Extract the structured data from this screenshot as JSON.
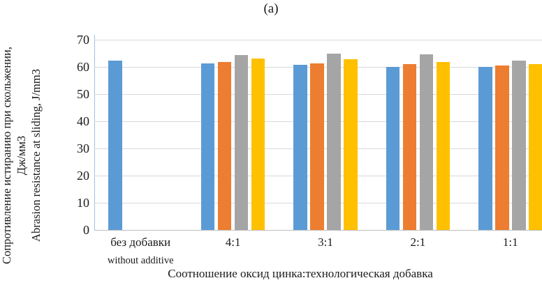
{
  "figure": {
    "panel_label": "(a)"
  },
  "chart_data": {
    "type": "bar",
    "title": "(a)",
    "xlabel": "Соотношение оксид цинка:технологическая добавка",
    "ylabel_lines": [
      "Сопротивление истиранию при скольжении,",
      "Дж/мм3",
      "Abrasion resistance at sliding, J/mm3"
    ],
    "categories": [
      {
        "label": "без добавки",
        "sublabel": "without additive"
      },
      {
        "label": "4:1",
        "sublabel": ""
      },
      {
        "label": "3:1",
        "sublabel": ""
      },
      {
        "label": "2:1",
        "sublabel": ""
      },
      {
        "label": "1:1",
        "sublabel": ""
      }
    ],
    "series": [
      {
        "name": "series-1-blue",
        "color": "#5B9BD5",
        "values": [
          62.3,
          61.3,
          60.7,
          60.1,
          59.9
        ]
      },
      {
        "name": "series-2-orange",
        "color": "#ED7D31",
        "values": [
          null,
          61.9,
          61.2,
          61.0,
          60.4
        ]
      },
      {
        "name": "series-3-gray",
        "color": "#A5A5A5",
        "values": [
          null,
          64.4,
          64.9,
          64.6,
          62.4
        ]
      },
      {
        "name": "series-4-yellow",
        "color": "#FFC000",
        "values": [
          null,
          63.2,
          62.9,
          61.7,
          61.1
        ]
      }
    ],
    "ylim": [
      0,
      70
    ],
    "yticks": [
      0,
      10,
      20,
      30,
      40,
      50,
      60,
      70
    ],
    "grid": true,
    "legend": "none",
    "colors": {
      "grid": "#D9D9D9",
      "x_axis_line": "#BFBFBF",
      "y_axis_line": "#9DC3E6",
      "text": "#1A1A1A"
    }
  }
}
